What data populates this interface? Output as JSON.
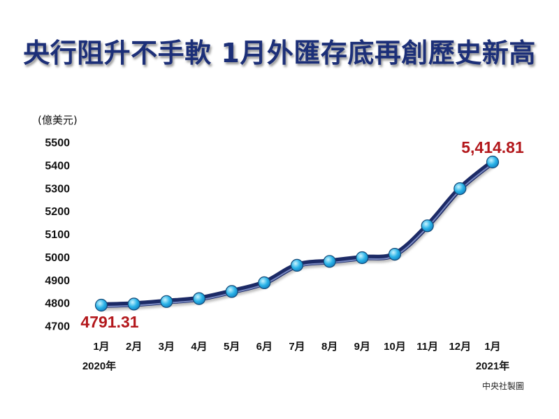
{
  "colors": {
    "title": "#1c2f78",
    "line": "#1c2a66",
    "marker": "#2ab3e8",
    "annotation": "#b3181c",
    "text": "#111111"
  },
  "chart_data": {
    "type": "line",
    "title": "央行阻升不手軟 1月外匯存底再創歷史新高",
    "ylabel": "(億美元)",
    "ylim": [
      4700,
      5500
    ],
    "yticks": [
      5500,
      5400,
      5300,
      5200,
      5100,
      5000,
      4900,
      4800,
      4700
    ],
    "categories": [
      "1月",
      "2月",
      "3月",
      "4月",
      "5月",
      "6月",
      "7月",
      "8月",
      "9月",
      "10月",
      "11月",
      "12月",
      "1月"
    ],
    "year_labels": [
      {
        "category_index": 0,
        "text": "2020年"
      },
      {
        "category_index": 12,
        "text": "2021年"
      }
    ],
    "values": [
      4791.31,
      4796,
      4807,
      4820,
      4851,
      4889,
      4965,
      4982,
      4998,
      5013,
      5137,
      5299,
      5414.81
    ],
    "annotations": [
      {
        "category_index": 0,
        "text": "4791.31",
        "placement": "below"
      },
      {
        "category_index": 12,
        "text": "5,414.81",
        "placement": "above"
      }
    ],
    "grid": false,
    "legend": "none",
    "source": "中央社製圖"
  }
}
